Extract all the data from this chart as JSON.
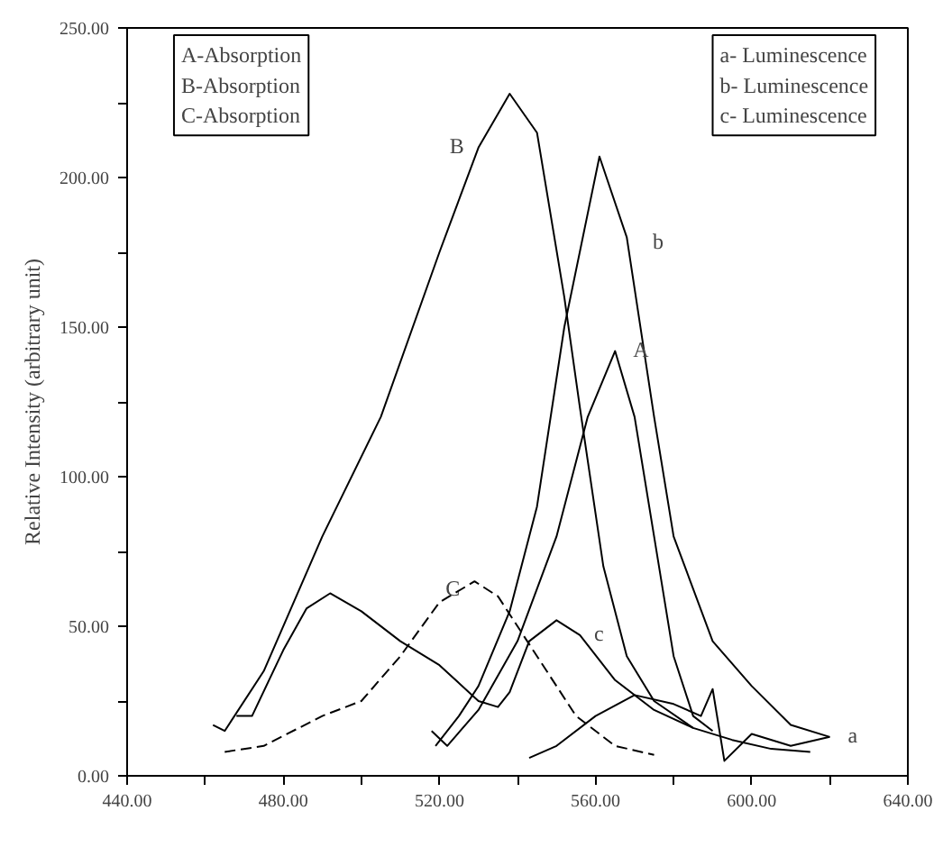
{
  "chart_data": {
    "type": "line",
    "ylabel": "Relative Intensity (arbitrary unit)",
    "xlim": [
      440,
      640
    ],
    "ylim": [
      0,
      250
    ],
    "xticks": [
      {
        "value": 440,
        "label": "440.00"
      },
      {
        "value": 460,
        "label": null
      },
      {
        "value": 480,
        "label": "480.00"
      },
      {
        "value": 500,
        "label": null
      },
      {
        "value": 520,
        "label": "520.00"
      },
      {
        "value": 540,
        "label": null
      },
      {
        "value": 560,
        "label": "560.00"
      },
      {
        "value": 580,
        "label": null
      },
      {
        "value": 600,
        "label": "600.00"
      },
      {
        "value": 620,
        "label": null
      },
      {
        "value": 640,
        "label": "640.00"
      }
    ],
    "yticks": [
      {
        "value": 0,
        "label": "0.00"
      },
      {
        "value": 25,
        "label": null
      },
      {
        "value": 50,
        "label": "50.00"
      },
      {
        "value": 75,
        "label": null
      },
      {
        "value": 100,
        "label": "100.00"
      },
      {
        "value": 125,
        "label": null
      },
      {
        "value": 150,
        "label": "150.00"
      },
      {
        "value": 175,
        "label": null
      },
      {
        "value": 200,
        "label": "200.00"
      },
      {
        "value": 225,
        "label": null
      },
      {
        "value": 250,
        "label": "250.00"
      }
    ],
    "grid": false,
    "series": [
      {
        "color": "#000000",
        "line_style": "solid",
        "x": [
          462,
          465,
          475,
          490,
          505,
          520,
          530,
          538,
          545,
          552,
          556,
          562,
          568,
          575,
          585
        ],
        "values": [
          17,
          15,
          35,
          80,
          120,
          175,
          210,
          228,
          215,
          160,
          123,
          70,
          40,
          25,
          16
        ]
      },
      {
        "color": "#000000",
        "line_style": "solid",
        "x": [
          519,
          525,
          530,
          538,
          545,
          552,
          561,
          568,
          575,
          580,
          590,
          600,
          610,
          620
        ],
        "values": [
          10,
          20,
          30,
          55,
          90,
          150,
          207,
          180,
          120,
          80,
          45,
          30,
          17,
          13
        ]
      },
      {
        "color": "#000000",
        "line_style": "solid",
        "x": [
          518,
          522,
          530,
          540,
          550,
          558,
          565,
          570,
          575,
          580,
          585,
          590
        ],
        "values": [
          15,
          10,
          22,
          45,
          80,
          120,
          142,
          120,
          80,
          40,
          20,
          15
        ]
      },
      {
        "color": "#000000",
        "line_style": "dashed",
        "x": [
          465,
          475,
          490,
          500,
          510,
          520,
          529,
          535,
          545,
          555,
          565,
          575
        ],
        "values": [
          8,
          10,
          20,
          25,
          40,
          58,
          65,
          60,
          40,
          20,
          10,
          7
        ]
      },
      {
        "color": "#000000",
        "line_style": "solid",
        "x": [
          468,
          472,
          480,
          486,
          492,
          500,
          510,
          520,
          530,
          535,
          538,
          543,
          550,
          556,
          565,
          575,
          585,
          595,
          605,
          615
        ],
        "values": [
          20,
          20,
          42,
          56,
          61,
          55,
          45,
          37,
          25,
          23,
          28,
          45,
          52,
          47,
          32,
          22,
          16,
          12,
          9,
          8
        ]
      },
      {
        "color": "#000000",
        "line_style": "solid",
        "x": [
          543,
          550,
          560,
          570,
          580,
          587,
          590,
          593,
          600,
          610,
          620
        ],
        "values": [
          6,
          10,
          20,
          27,
          24,
          20,
          29,
          5,
          14,
          10,
          13
        ]
      }
    ],
    "annotations": [
      "A-Absorption\nB-Absorption\nC-Absorption",
      "a- Luminescence\nb- Luminescence\nc- Luminescence",
      {
        "text": "B",
        "x": 530,
        "y": 210
      },
      {
        "text": "b",
        "x": 570,
        "y": 178
      },
      {
        "text": "A",
        "x": 565,
        "y": 142
      },
      {
        "text": "C",
        "x": 529,
        "y": 62
      },
      {
        "text": "c",
        "x": 555,
        "y": 47
      },
      {
        "text": "a",
        "x": 620,
        "y": 13
      }
    ]
  }
}
